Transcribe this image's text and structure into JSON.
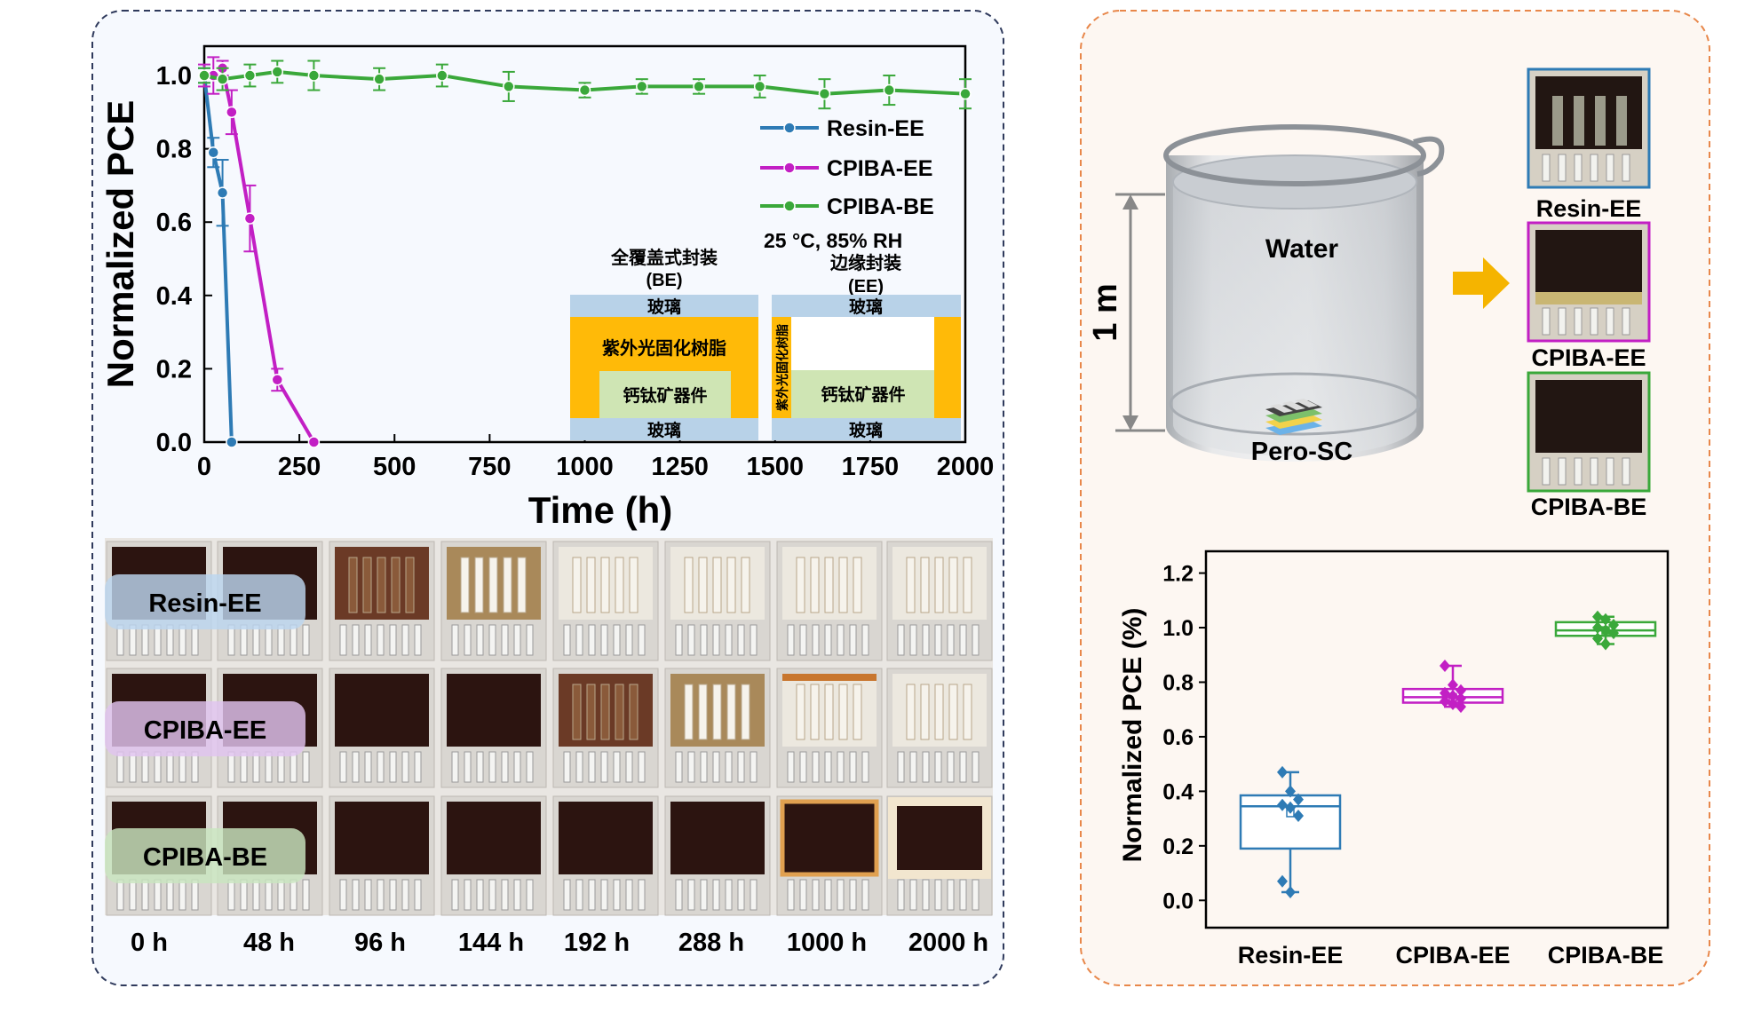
{
  "colors": {
    "resin": "#2e7bb5",
    "cpiba_ee": "#c21fc4",
    "cpiba_be": "#3aa83a",
    "left_panel_border": "#2f3a5c",
    "right_panel_border": "#e8874a",
    "right_panel_bg": "#fdf7f2",
    "left_panel_bg": "#f6f9fe",
    "resin_yellow": "#ffba08",
    "glass_blue": "#b8d2e8",
    "device_green": "#cfe5b4",
    "arrow": "#f5b400"
  },
  "stability_chart": {
    "type": "line",
    "ylabel": "Normalized PCE",
    "xlabel": "Time (h)",
    "xlim": [
      0,
      2000
    ],
    "ylim": [
      0,
      1.08
    ],
    "xticks": [
      "0",
      "250",
      "500",
      "750",
      "1000",
      "1250",
      "1500",
      "1750",
      "2000"
    ],
    "yticks": [
      "0.0",
      "0.2",
      "0.4",
      "0.6",
      "0.8",
      "1.0"
    ],
    "condition": "25 °C, 85% RH",
    "series": [
      {
        "name": "Resin-EE",
        "color": "#2e7bb5",
        "points": [
          [
            0,
            1.0
          ],
          [
            24,
            0.79
          ],
          [
            48,
            0.68
          ],
          [
            72,
            0.0
          ]
        ],
        "err": [
          0.02,
          0.04,
          0.09,
          0.0
        ]
      },
      {
        "name": "CPIBA-EE",
        "color": "#c21fc4",
        "points": [
          [
            0,
            1.0
          ],
          [
            24,
            1.0
          ],
          [
            48,
            1.02
          ],
          [
            72,
            0.9
          ],
          [
            120,
            0.61
          ],
          [
            192,
            0.17
          ],
          [
            288,
            0.0
          ]
        ],
        "err": [
          0.03,
          0.05,
          0.02,
          0.06,
          0.09,
          0.03,
          0.0
        ]
      },
      {
        "name": "CPIBA-BE",
        "color": "#3aa83a",
        "points": [
          [
            0,
            1.0
          ],
          [
            48,
            0.99
          ],
          [
            120,
            1.0
          ],
          [
            192,
            1.01
          ],
          [
            288,
            1.0
          ],
          [
            460,
            0.99
          ],
          [
            625,
            1.0
          ],
          [
            800,
            0.97
          ],
          [
            1000,
            0.96
          ],
          [
            1150,
            0.97
          ],
          [
            1300,
            0.97
          ],
          [
            1460,
            0.97
          ],
          [
            1630,
            0.95
          ],
          [
            1800,
            0.96
          ],
          [
            2000,
            0.95
          ]
        ],
        "err": [
          0.02,
          0.03,
          0.03,
          0.03,
          0.04,
          0.03,
          0.03,
          0.04,
          0.02,
          0.02,
          0.02,
          0.03,
          0.04,
          0.04,
          0.04
        ]
      }
    ]
  },
  "inset": {
    "be_title": "全覆盖式封装",
    "be_abbr": "(BE)",
    "ee_title": "边缘封装",
    "ee_abbr": "(EE)",
    "glass": "玻璃",
    "uv_resin": "紫外光固化树脂",
    "device": "钙钛矿器件"
  },
  "photo_grid": {
    "row_labels": [
      "Resin-EE",
      "CPIBA-EE",
      "CPIBA-BE"
    ],
    "time_labels": [
      "0 h",
      "48 h",
      "96 h",
      "144 h",
      "192 h",
      "288 h",
      "1000 h",
      "2000 h"
    ]
  },
  "immersion": {
    "water_label": "Water",
    "depth_label": "1 m",
    "device_label": "Pero-SC",
    "result_labels": [
      "Resin-EE",
      "CPIBA-EE",
      "CPIBA-BE"
    ]
  },
  "chart_data": [
    {
      "type": "line",
      "title": "",
      "xlabel": "Time (h)",
      "ylabel": "Normalized PCE",
      "xlim": [
        0,
        2000
      ],
      "ylim": [
        0,
        1.08
      ],
      "annotation": "25 °C, 85% RH",
      "series": [
        {
          "name": "Resin-EE",
          "x": [
            0,
            24,
            48,
            72
          ],
          "y": [
            1.0,
            0.79,
            0.68,
            0.0
          ]
        },
        {
          "name": "CPIBA-EE",
          "x": [
            0,
            24,
            48,
            72,
            120,
            192,
            288
          ],
          "y": [
            1.0,
            1.0,
            1.02,
            0.9,
            0.61,
            0.17,
            0.0
          ]
        },
        {
          "name": "CPIBA-BE",
          "x": [
            0,
            48,
            120,
            192,
            288,
            460,
            625,
            800,
            1000,
            1150,
            1300,
            1460,
            1630,
            1800,
            2000
          ],
          "y": [
            1.0,
            0.99,
            1.0,
            1.01,
            1.0,
            0.99,
            1.0,
            0.97,
            0.96,
            0.97,
            0.97,
            0.97,
            0.95,
            0.96,
            0.95
          ]
        }
      ]
    },
    {
      "type": "box",
      "title": "",
      "xlabel": "",
      "ylabel": "Normalized PCE (%)",
      "ylim": [
        -0.1,
        1.28
      ],
      "yticks": [
        "0.0",
        "0.2",
        "0.4",
        "0.6",
        "0.8",
        "1.0",
        "1.2"
      ],
      "categories": [
        "Resin-EE",
        "CPIBA-EE",
        "CPIBA-BE"
      ],
      "series": [
        {
          "name": "Resin-EE",
          "color": "#2e7bb5",
          "q1": 0.19,
          "median": 0.345,
          "q3": 0.385,
          "mean": 0.32,
          "points": [
            0.47,
            0.4,
            0.37,
            0.35,
            0.34,
            0.31,
            0.07,
            0.03
          ]
        },
        {
          "name": "CPIBA-EE",
          "color": "#c21fc4",
          "q1": 0.725,
          "median": 0.745,
          "q3": 0.775,
          "mean": 0.745,
          "points": [
            0.86,
            0.79,
            0.77,
            0.76,
            0.75,
            0.74,
            0.73,
            0.72,
            0.71
          ]
        },
        {
          "name": "CPIBA-BE",
          "color": "#3aa83a",
          "q1": 0.97,
          "median": 0.99,
          "q3": 1.02,
          "mean": 0.99,
          "points": [
            1.04,
            1.03,
            1.01,
            1.0,
            0.99,
            0.98,
            0.96,
            0.94
          ]
        }
      ]
    }
  ]
}
